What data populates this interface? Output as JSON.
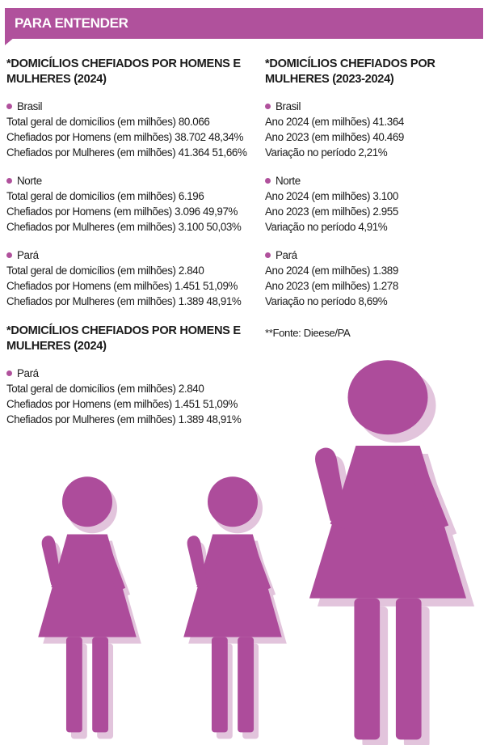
{
  "header": {
    "title": "PARA ENTENDER"
  },
  "left": {
    "sections": [
      {
        "title": "*DOMICÍLIOS CHEFIADOS POR HOMENS E MULHERES (2024)",
        "groups": [
          {
            "region": "Brasil",
            "lines": [
              "Total geral de domicílios (em milhões) 80.066",
              "Chefiados por Homens (em milhões) 38.702 48,34%",
              "Chefiados por Mulheres (em milhões) 41.364 51,66%"
            ]
          },
          {
            "region": "Norte",
            "lines": [
              "Total geral de domicílios (em milhões) 6.196",
              "Chefiados por Homens (em milhões) 3.096 49,97%",
              "Chefiados por Mulheres (em milhões) 3.100 50,03%"
            ]
          },
          {
            "region": "Pará",
            "lines": [
              "Total geral de domicílios (em milhões) 2.840",
              "Chefiados por Homens (em milhões) 1.451 51,09%",
              "Chefiados por Mulheres (em milhões) 1.389 48,91%"
            ]
          }
        ]
      },
      {
        "title": "*DOMICÍLIOS CHEFIADOS POR HOMENS E MULHERES (2024)",
        "groups": [
          {
            "region": "Pará",
            "lines": [
              "Total geral de domicílios (em milhões) 2.840",
              "Chefiados por Homens (em milhões) 1.451 51,09%",
              "Chefiados por Mulheres (em milhões) 1.389 48,91%"
            ]
          }
        ]
      }
    ]
  },
  "right": {
    "title": "*DOMICÍLIOS CHEFIADOS POR MULHERES (2023-2024)",
    "groups": [
      {
        "region": "Brasil",
        "lines": [
          "Ano 2024 (em milhões) 41.364",
          "Ano 2023 (em milhões) 40.469",
          "Variação no período 2,21%"
        ]
      },
      {
        "region": "Norte",
        "lines": [
          "Ano 2024 (em milhões) 3.100",
          "Ano 2023 (em milhões) 2.955",
          "Variação no período 4,91%"
        ]
      },
      {
        "region": "Pará",
        "lines": [
          "Ano 2024 (em milhões) 1.389",
          "Ano 2023 (em milhões) 1.278",
          "Variação no período 8,69%"
        ]
      }
    ],
    "source": "**Fonte: Dieese/PA"
  },
  "colors": {
    "accent": "#b0519c",
    "figure": "#ad4c9b",
    "shadow": "#e2c4dc"
  },
  "illustration": {
    "icon": "woman-figure-icon",
    "count": 3
  }
}
